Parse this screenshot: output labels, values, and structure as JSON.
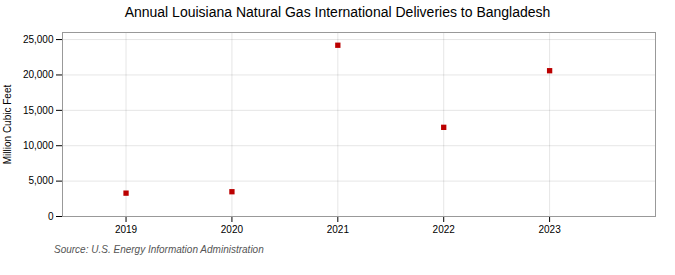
{
  "chart_data": {
    "type": "scatter",
    "title": "Annual Louisiana Natural Gas International Deliveries to Bangladesh",
    "ylabel": "Million Cubic Feet",
    "annotations": [
      "Source: U.S. Energy Information Administration"
    ],
    "x": [
      2019,
      2020,
      2021,
      2022,
      2023
    ],
    "values": [
      3300,
      3500,
      24200,
      12600,
      20600
    ],
    "color": "#bb0000",
    "marker": "square",
    "xlim": [
      2018.4,
      2024.0
    ],
    "xticks": [
      2019,
      2020,
      2021,
      2022,
      2023
    ],
    "ylim": [
      0,
      26000
    ],
    "yticks": [
      0,
      {
        "value": 5000,
        "label": "5,000"
      },
      {
        "value": 10000,
        "label": "10,000"
      },
      {
        "value": 15000,
        "label": "15,000"
      },
      {
        "value": 20000,
        "label": "20,000"
      },
      {
        "value": 25000,
        "label": "25,000"
      }
    ],
    "grid": true
  }
}
